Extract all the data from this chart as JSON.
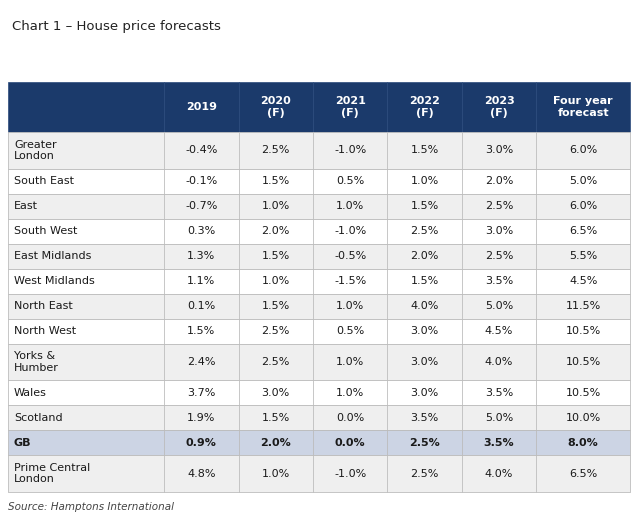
{
  "title": "Chart 1 – House price forecasts",
  "source": "Source: Hamptons International",
  "header_bg": "#1b3a6b",
  "header_text": "#ffffff",
  "row_bg_odd": "#efefef",
  "row_bg_even": "#ffffff",
  "gb_row_bg": "#ccd4e4",
  "col_headers": [
    "",
    "2019",
    "2020\n(F)",
    "2021\n(F)",
    "2022\n(F)",
    "2023\n(F)",
    "Four year\nforecast"
  ],
  "rows": [
    {
      "region": "Greater\nLondon",
      "vals": [
        "-0.4%",
        "2.5%",
        "-1.0%",
        "1.5%",
        "3.0%",
        "6.0%"
      ],
      "bold": false,
      "multiline": true
    },
    {
      "region": "South East",
      "vals": [
        "-0.1%",
        "1.5%",
        "0.5%",
        "1.0%",
        "2.0%",
        "5.0%"
      ],
      "bold": false,
      "multiline": false
    },
    {
      "region": "East",
      "vals": [
        "-0.7%",
        "1.0%",
        "1.0%",
        "1.5%",
        "2.5%",
        "6.0%"
      ],
      "bold": false,
      "multiline": false
    },
    {
      "region": "South West",
      "vals": [
        "0.3%",
        "2.0%",
        "-1.0%",
        "2.5%",
        "3.0%",
        "6.5%"
      ],
      "bold": false,
      "multiline": false
    },
    {
      "region": "East Midlands",
      "vals": [
        "1.3%",
        "1.5%",
        "-0.5%",
        "2.0%",
        "2.5%",
        "5.5%"
      ],
      "bold": false,
      "multiline": false
    },
    {
      "region": "West Midlands",
      "vals": [
        "1.1%",
        "1.0%",
        "-1.5%",
        "1.5%",
        "3.5%",
        "4.5%"
      ],
      "bold": false,
      "multiline": false
    },
    {
      "region": "North East",
      "vals": [
        "0.1%",
        "1.5%",
        "1.0%",
        "4.0%",
        "5.0%",
        "11.5%"
      ],
      "bold": false,
      "multiline": false
    },
    {
      "region": "North West",
      "vals": [
        "1.5%",
        "2.5%",
        "0.5%",
        "3.0%",
        "4.5%",
        "10.5%"
      ],
      "bold": false,
      "multiline": false
    },
    {
      "region": "Yorks &\nHumber",
      "vals": [
        "2.4%",
        "2.5%",
        "1.0%",
        "3.0%",
        "4.0%",
        "10.5%"
      ],
      "bold": false,
      "multiline": true
    },
    {
      "region": "Wales",
      "vals": [
        "3.7%",
        "3.0%",
        "1.0%",
        "3.0%",
        "3.5%",
        "10.5%"
      ],
      "bold": false,
      "multiline": false
    },
    {
      "region": "Scotland",
      "vals": [
        "1.9%",
        "1.5%",
        "0.0%",
        "3.5%",
        "5.0%",
        "10.0%"
      ],
      "bold": false,
      "multiline": false
    },
    {
      "region": "GB",
      "vals": [
        "0.9%",
        "2.0%",
        "0.0%",
        "2.5%",
        "3.5%",
        "8.0%"
      ],
      "bold": true,
      "multiline": false
    },
    {
      "region": "Prime Central\nLondon",
      "vals": [
        "4.8%",
        "1.0%",
        "-1.0%",
        "2.5%",
        "4.0%",
        "6.5%"
      ],
      "bold": false,
      "multiline": true
    }
  ]
}
